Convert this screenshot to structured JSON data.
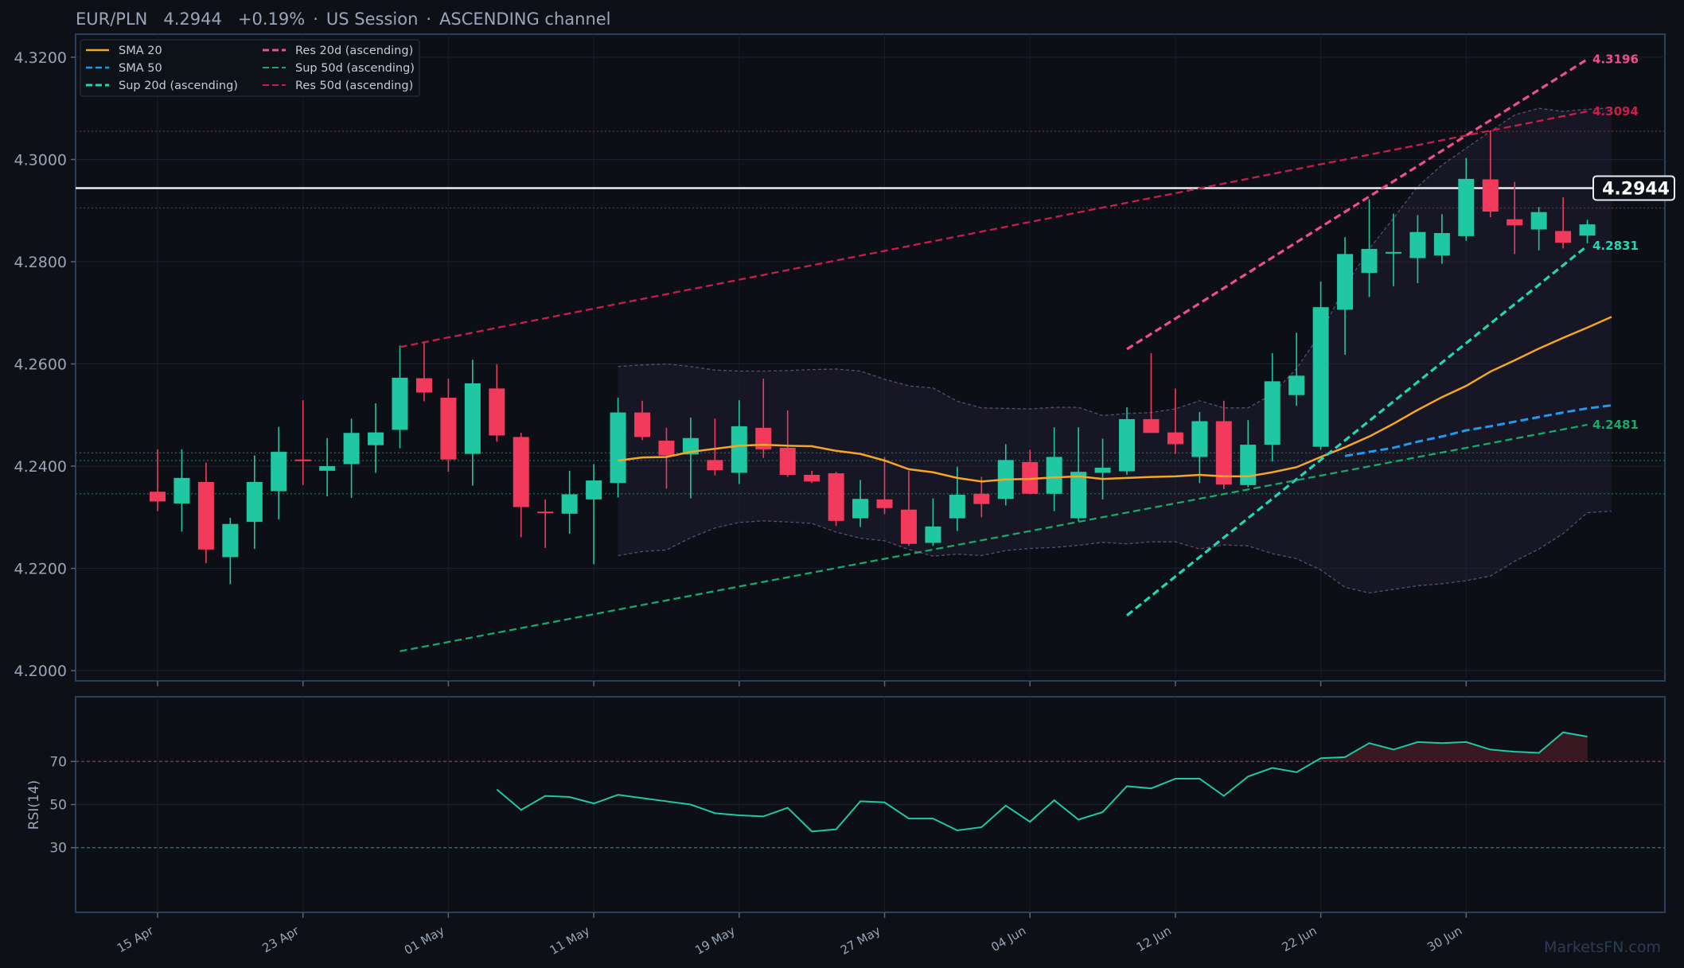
{
  "header": {
    "pair": "EUR/PLN",
    "price": "4.2944",
    "change": "+0.19%",
    "session": "US Session",
    "pattern": "ASCENDING channel"
  },
  "watermark": "MarketsFN.com",
  "colors": {
    "background": "#0d1017",
    "up": "#1fc8a2",
    "down": "#f23b5c",
    "sma20": "#f5a623",
    "sma50": "#1e9bf0",
    "sup20": "#1fd8b5",
    "res20": "#ef4f8c",
    "sup50": "#17a86a",
    "res50": "#c81e4b",
    "rsi": "#1fc8a2"
  },
  "chart_data": [
    {
      "type": "candlestick",
      "title": "EUR/PLN 4.2944 +0.19% · US Session · ASCENDING channel",
      "ylim": [
        4.198,
        4.3245
      ],
      "yticks": [
        4.2,
        4.22,
        4.24,
        4.26,
        4.28,
        4.3,
        4.32
      ],
      "ytick_labels": [
        "4.2000",
        "4.2200",
        "4.2400",
        "4.2600",
        "4.2800",
        "4.3000",
        "4.3200"
      ],
      "x_tick_positions": [
        0,
        6,
        12,
        18,
        24,
        30,
        36,
        42,
        48,
        54
      ],
      "x_tick_labels": [
        "15 Apr",
        "23 Apr",
        "01 May",
        "11 May",
        "19 May",
        "27 May",
        "04 Jun",
        "12 Jun",
        "22 Jun",
        "30 Jun"
      ],
      "candles": [
        {
          "o": 4.235,
          "h": 4.2433,
          "l": 4.2312,
          "c": 4.2331
        },
        {
          "o": 4.2327,
          "h": 4.2433,
          "l": 4.2272,
          "c": 4.2377
        },
        {
          "o": 4.2369,
          "h": 4.2407,
          "l": 4.221,
          "c": 4.2237
        },
        {
          "o": 4.2222,
          "h": 4.2299,
          "l": 4.2169,
          "c": 4.2287
        },
        {
          "o": 4.2291,
          "h": 4.2421,
          "l": 4.2238,
          "c": 4.2369
        },
        {
          "o": 4.2351,
          "h": 4.2477,
          "l": 4.2296,
          "c": 4.2428
        },
        {
          "o": 4.2413,
          "h": 4.2529,
          "l": 4.2363,
          "c": 4.2412
        },
        {
          "o": 4.2391,
          "h": 4.2455,
          "l": 4.2341,
          "c": 4.24
        },
        {
          "o": 4.2404,
          "h": 4.2493,
          "l": 4.2338,
          "c": 4.2465
        },
        {
          "o": 4.2441,
          "h": 4.2523,
          "l": 4.2387,
          "c": 4.2466
        },
        {
          "o": 4.2471,
          "h": 4.2636,
          "l": 4.2435,
          "c": 4.2573
        },
        {
          "o": 4.2572,
          "h": 4.2642,
          "l": 4.2527,
          "c": 4.2544
        },
        {
          "o": 4.2534,
          "h": 4.2571,
          "l": 4.2389,
          "c": 4.2413
        },
        {
          "o": 4.2424,
          "h": 4.2608,
          "l": 4.2362,
          "c": 4.2562
        },
        {
          "o": 4.2552,
          "h": 4.2599,
          "l": 4.2448,
          "c": 4.246
        },
        {
          "o": 4.2457,
          "h": 4.2465,
          "l": 4.2261,
          "c": 4.232
        },
        {
          "o": 4.2311,
          "h": 4.2335,
          "l": 4.224,
          "c": 4.231
        },
        {
          "o": 4.2307,
          "h": 4.2391,
          "l": 4.2268,
          "c": 4.2345
        },
        {
          "o": 4.2335,
          "h": 4.2404,
          "l": 4.2208,
          "c": 4.2372
        },
        {
          "o": 4.2367,
          "h": 4.2534,
          "l": 4.2339,
          "c": 4.2505
        },
        {
          "o": 4.2505,
          "h": 4.2528,
          "l": 4.2451,
          "c": 4.2457
        },
        {
          "o": 4.245,
          "h": 4.2475,
          "l": 4.2356,
          "c": 4.2421
        },
        {
          "o": 4.2423,
          "h": 4.2495,
          "l": 4.2337,
          "c": 4.2455
        },
        {
          "o": 4.2412,
          "h": 4.2493,
          "l": 4.2382,
          "c": 4.2392
        },
        {
          "o": 4.2387,
          "h": 4.2529,
          "l": 4.2365,
          "c": 4.2478
        },
        {
          "o": 4.2475,
          "h": 4.2571,
          "l": 4.2416,
          "c": 4.2433
        },
        {
          "o": 4.2436,
          "h": 4.2509,
          "l": 4.2379,
          "c": 4.2383
        },
        {
          "o": 4.2383,
          "h": 4.2391,
          "l": 4.2367,
          "c": 4.237
        },
        {
          "o": 4.2386,
          "h": 4.2389,
          "l": 4.2283,
          "c": 4.2293
        },
        {
          "o": 4.2298,
          "h": 4.2373,
          "l": 4.2281,
          "c": 4.2336
        },
        {
          "o": 4.2335,
          "h": 4.2418,
          "l": 4.2306,
          "c": 4.2318
        },
        {
          "o": 4.2315,
          "h": 4.2391,
          "l": 4.2244,
          "c": 4.2248
        },
        {
          "o": 4.225,
          "h": 4.2337,
          "l": 4.2244,
          "c": 4.2282
        },
        {
          "o": 4.2298,
          "h": 4.2399,
          "l": 4.2273,
          "c": 4.2344
        },
        {
          "o": 4.2346,
          "h": 4.2379,
          "l": 4.23,
          "c": 4.2326
        },
        {
          "o": 4.2336,
          "h": 4.2443,
          "l": 4.2323,
          "c": 4.2412
        },
        {
          "o": 4.2408,
          "h": 4.2432,
          "l": 4.2345,
          "c": 4.2346
        },
        {
          "o": 4.2346,
          "h": 4.2476,
          "l": 4.2312,
          "c": 4.2418
        },
        {
          "o": 4.2298,
          "h": 4.2476,
          "l": 4.2292,
          "c": 4.2389
        },
        {
          "o": 4.2387,
          "h": 4.2454,
          "l": 4.2335,
          "c": 4.2397
        },
        {
          "o": 4.239,
          "h": 4.2515,
          "l": 4.2383,
          "c": 4.2492
        },
        {
          "o": 4.2492,
          "h": 4.2621,
          "l": 4.247,
          "c": 4.2465
        },
        {
          "o": 4.2466,
          "h": 4.2552,
          "l": 4.2424,
          "c": 4.2443
        },
        {
          "o": 4.2418,
          "h": 4.2506,
          "l": 4.2367,
          "c": 4.2488
        },
        {
          "o": 4.2488,
          "h": 4.2528,
          "l": 4.2355,
          "c": 4.2364
        },
        {
          "o": 4.2363,
          "h": 4.249,
          "l": 4.2359,
          "c": 4.2442
        },
        {
          "o": 4.2442,
          "h": 4.2621,
          "l": 4.2409,
          "c": 4.2566
        },
        {
          "o": 4.2539,
          "h": 4.2661,
          "l": 4.2518,
          "c": 4.2577
        },
        {
          "o": 4.2438,
          "h": 4.2761,
          "l": 4.2432,
          "c": 4.2711
        },
        {
          "o": 4.2706,
          "h": 4.2848,
          "l": 4.2618,
          "c": 4.2815
        },
        {
          "o": 4.2778,
          "h": 4.2922,
          "l": 4.2731,
          "c": 4.2825
        },
        {
          "o": 4.2817,
          "h": 4.2894,
          "l": 4.2752,
          "c": 4.2819
        },
        {
          "o": 4.2807,
          "h": 4.2891,
          "l": 4.2758,
          "c": 4.2858
        },
        {
          "o": 4.2812,
          "h": 4.2893,
          "l": 4.2796,
          "c": 4.2856
        },
        {
          "o": 4.285,
          "h": 4.3003,
          "l": 4.2841,
          "c": 4.2962
        },
        {
          "o": 4.2961,
          "h": 4.3057,
          "l": 4.2887,
          "c": 4.2898
        },
        {
          "o": 4.2883,
          "h": 4.2956,
          "l": 4.2815,
          "c": 4.2871
        },
        {
          "o": 4.2863,
          "h": 4.2907,
          "l": 4.2822,
          "c": 4.2897
        },
        {
          "o": 4.286,
          "h": 4.2926,
          "l": 4.2826,
          "c": 4.2837
        },
        {
          "o": 4.2851,
          "h": 4.2882,
          "l": 4.2836,
          "c": 4.2873
        }
      ],
      "sma20": {
        "start": 19,
        "values": [
          4.2411,
          4.2417,
          4.2418,
          4.2428,
          4.2434,
          4.244,
          4.2442,
          4.244,
          4.2439,
          4.243,
          4.2424,
          4.2411,
          4.2394,
          4.2388,
          4.2377,
          4.237,
          4.2374,
          4.2375,
          4.2378,
          4.238,
          4.2375,
          4.2377,
          4.2379,
          4.238,
          4.2383,
          4.238,
          4.238,
          4.2388,
          4.2398,
          4.2418,
          4.2437,
          4.2458,
          4.2483,
          4.251,
          4.2535,
          4.2557,
          4.2585,
          4.2607,
          4.263,
          4.2651,
          4.2671,
          4.2692
        ]
      },
      "sma50": {
        "start": 49,
        "values": [
          4.242,
          4.2428,
          4.2436,
          4.2448,
          4.2458,
          4.247,
          4.2478,
          4.2487,
          4.2496,
          4.2505,
          4.2513,
          4.2519
        ]
      },
      "bollinger": {
        "start": 19,
        "upper": [
          4.2595,
          4.2598,
          4.26,
          4.2595,
          4.2588,
          4.2586,
          4.2586,
          4.2587,
          4.2589,
          4.259,
          4.2586,
          4.257,
          4.2557,
          4.2553,
          4.2527,
          4.2514,
          4.2513,
          4.2512,
          4.2515,
          4.2515,
          4.2499,
          4.2503,
          4.2505,
          4.2512,
          4.2528,
          4.2514,
          4.2514,
          4.2541,
          4.2591,
          4.266,
          4.2751,
          4.2825,
          4.2885,
          4.2947,
          4.2989,
          4.3022,
          4.3055,
          4.3087,
          4.31,
          4.3094,
          4.3098,
          4.3101
        ],
        "lower": [
          4.2225,
          4.2233,
          4.2236,
          4.226,
          4.2279,
          4.229,
          4.2293,
          4.2291,
          4.2288,
          4.2271,
          4.2259,
          4.2254,
          4.2237,
          4.2224,
          4.2228,
          4.2225,
          4.2235,
          4.2239,
          4.2241,
          4.2245,
          4.2251,
          4.2248,
          4.2252,
          4.2252,
          4.2238,
          4.2246,
          4.2244,
          4.2229,
          4.2219,
          4.2197,
          4.2163,
          4.2152,
          4.2159,
          4.2166,
          4.217,
          4.2176,
          4.2185,
          4.2214,
          4.2238,
          4.2268,
          4.2309,
          4.2312
        ]
      },
      "reference_lines": [
        {
          "name": "current",
          "y": 4.2944,
          "label": "4.2944"
        },
        {
          "name": "resistance-dotted",
          "y": 4.3055
        },
        {
          "name": "resistance-dotted-2",
          "y": 4.2905
        },
        {
          "name": "support-dotted",
          "y": 4.2426
        },
        {
          "name": "support-dotted-2",
          "y": 4.2411
        },
        {
          "name": "support-dotted-3",
          "y": 4.2346
        }
      ],
      "trendlines": [
        {
          "name": "SMA 20",
          "style": "solid",
          "series": "sma20"
        },
        {
          "name": "SMA 50",
          "style": "dashed",
          "series": "sma50"
        },
        {
          "name": "Sup 20d (ascending)",
          "style": "dashed",
          "from": [
            40,
            4.2108
          ],
          "to": [
            59,
            4.2831
          ],
          "label": "4.2831"
        },
        {
          "name": "Res 20d (ascending)",
          "style": "dashed",
          "from": [
            40,
            4.2629
          ],
          "to": [
            59,
            4.3196
          ],
          "label": "4.3196"
        },
        {
          "name": "Sup 50d (ascending)",
          "style": "dashed",
          "from": [
            10,
            4.2038
          ],
          "to": [
            59,
            4.2481
          ],
          "label": "4.2481"
        },
        {
          "name": "Res 50d (ascending)",
          "style": "dashed",
          "from": [
            10,
            4.2633
          ],
          "to": [
            59,
            4.3094
          ],
          "label": "4.3094"
        }
      ],
      "legend_position": "top-left"
    },
    {
      "type": "line",
      "ylabel": "RSI(14)",
      "ylim": [
        0,
        100
      ],
      "yticks": [
        30,
        50,
        70
      ],
      "ytick_labels": [
        "30",
        "50",
        "70"
      ],
      "overbought": 70,
      "oversold": 30,
      "start": 14,
      "values": [
        57.0,
        47.5,
        54.0,
        53.5,
        50.5,
        54.5,
        53.0,
        51.5,
        50.0,
        46.0,
        45.0,
        44.5,
        48.5,
        37.5,
        38.5,
        51.5,
        51.0,
        43.5,
        43.5,
        38.0,
        39.5,
        49.5,
        42.0,
        52.0,
        43.0,
        46.5,
        58.5,
        57.5,
        62.0,
        62.0,
        54.0,
        63.0,
        67.0,
        65.0,
        71.5,
        72.0,
        78.5,
        75.5,
        79.0,
        78.5,
        79.0,
        75.5,
        74.5,
        74.0,
        83.5,
        81.5
      ]
    }
  ]
}
